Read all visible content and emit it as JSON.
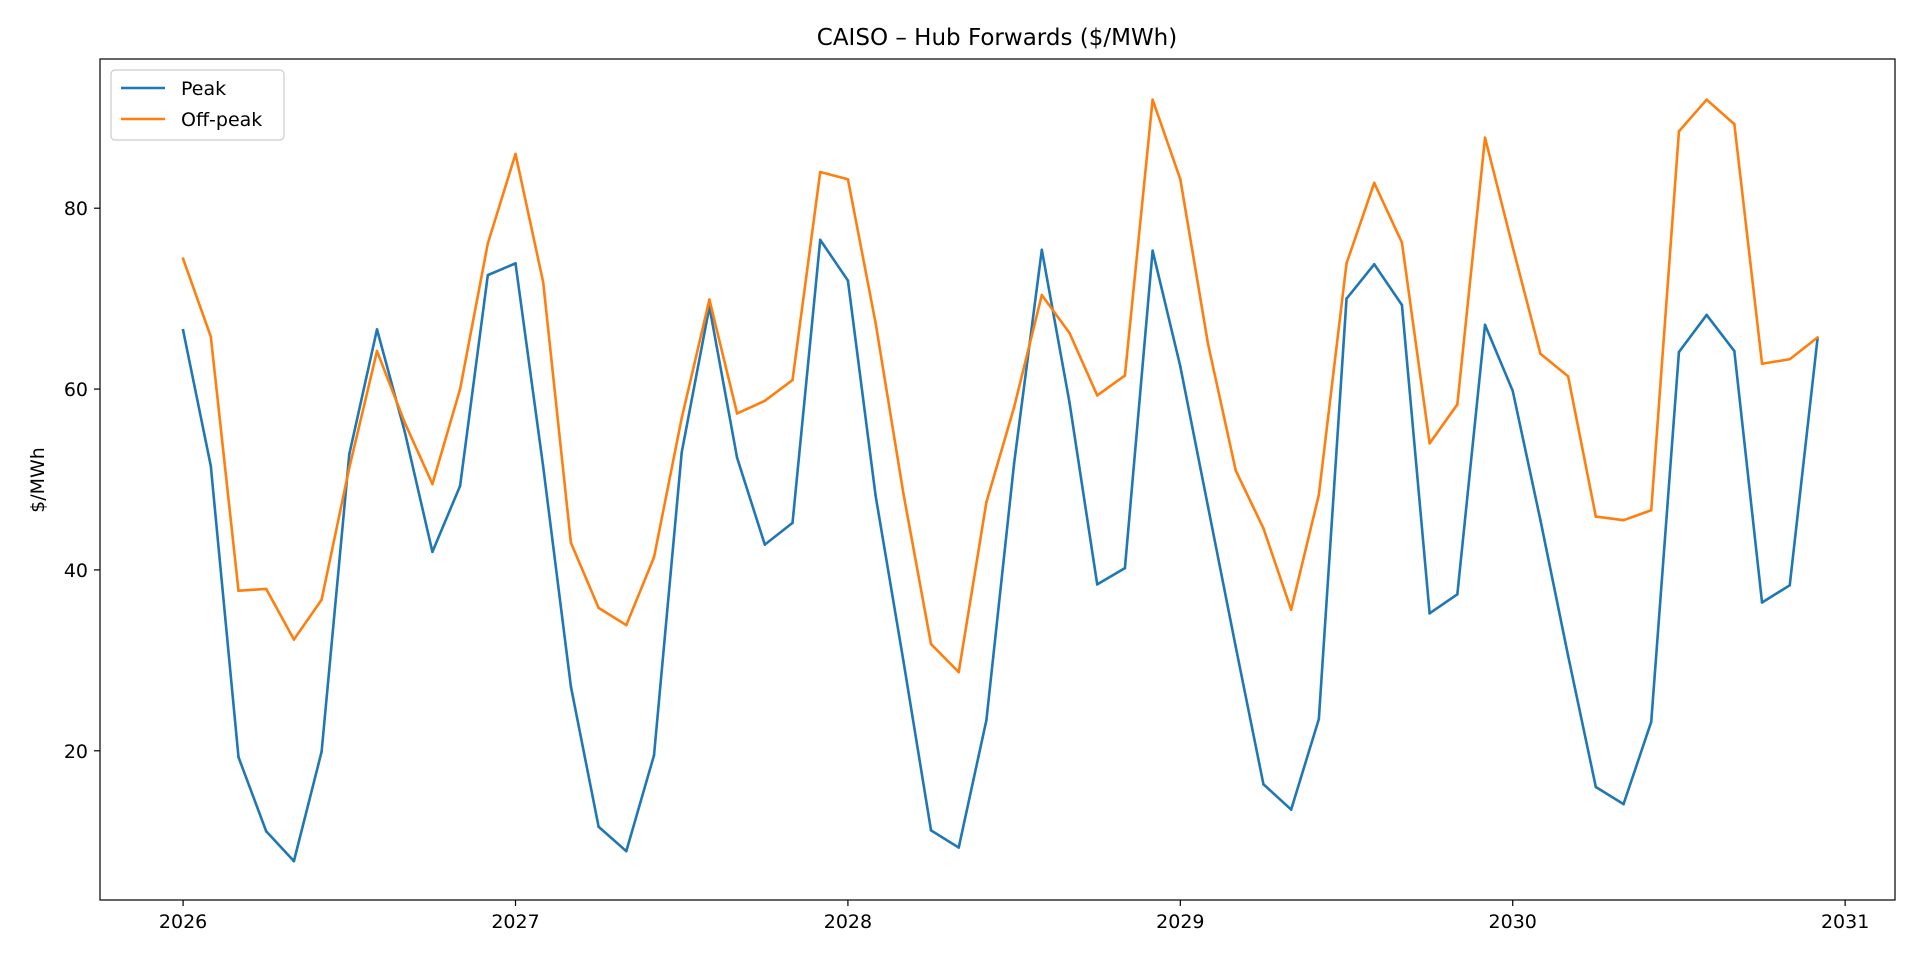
{
  "chart_data": {
    "type": "line",
    "title": "CAISO – Hub Forwards ($/MWh)",
    "xlabel": "",
    "ylabel": "$/MWh",
    "x_axis": {
      "ticks": [
        "2026",
        "2027",
        "2028",
        "2029",
        "2030",
        "2031"
      ],
      "range_years": [
        2025.75,
        2031.15
      ]
    },
    "y_axis": {
      "ticks": [
        20,
        40,
        60,
        80
      ],
      "range": [
        3.5,
        96.5
      ]
    },
    "grid": false,
    "legend": {
      "placement": "top-left"
    },
    "x": [
      "2026-01",
      "2026-02",
      "2026-03",
      "2026-04",
      "2026-05",
      "2026-06",
      "2026-07",
      "2026-08",
      "2026-09",
      "2026-10",
      "2026-11",
      "2026-12",
      "2027-01",
      "2027-02",
      "2027-03",
      "2027-04",
      "2027-05",
      "2027-06",
      "2027-07",
      "2027-08",
      "2027-09",
      "2027-10",
      "2027-11",
      "2027-12",
      "2028-01",
      "2028-02",
      "2028-03",
      "2028-04",
      "2028-05",
      "2028-06",
      "2028-07",
      "2028-08",
      "2028-09",
      "2028-10",
      "2028-11",
      "2028-12",
      "2029-01",
      "2029-02",
      "2029-03",
      "2029-04",
      "2029-05",
      "2029-06",
      "2029-07",
      "2029-08",
      "2029-09",
      "2029-10",
      "2029-11",
      "2029-12",
      "2030-01",
      "2030-02",
      "2030-03",
      "2030-04",
      "2030-05",
      "2030-06",
      "2030-07",
      "2030-08",
      "2030-09",
      "2030-10",
      "2030-11",
      "2030-12"
    ],
    "series": [
      {
        "name": "Peak",
        "color": "#1f77b4",
        "values": [
          66.5,
          51.5,
          19.3,
          11.1,
          7.8,
          19.9,
          52.8,
          66.6,
          55.3,
          42.0,
          49.3,
          72.6,
          73.9,
          51.4,
          27.1,
          11.6,
          8.9,
          19.5,
          53.0,
          69.1,
          52.4,
          42.8,
          45.2,
          76.5,
          72.0,
          48.2,
          30.0,
          11.2,
          9.3,
          23.4,
          51.8,
          75.4,
          58.5,
          38.4,
          40.2,
          75.3,
          62.5,
          47.0,
          31.5,
          16.3,
          13.5,
          23.5,
          70.0,
          73.8,
          69.3,
          35.2,
          37.3,
          67.1,
          59.8,
          45.5,
          30.5,
          16.0,
          14.1,
          23.2,
          64.1,
          68.2,
          64.2,
          36.4,
          38.3,
          65.5
        ]
      },
      {
        "name": "Off-peak",
        "color": "#ff7f0e",
        "values": [
          74.4,
          65.8,
          37.7,
          37.9,
          32.3,
          36.7,
          51.3,
          64.2,
          56.3,
          49.5,
          60.0,
          76.1,
          86.0,
          71.8,
          43.0,
          35.8,
          33.9,
          41.4,
          56.8,
          69.9,
          57.3,
          58.7,
          61.0,
          84.0,
          83.2,
          67.3,
          48.5,
          31.8,
          28.7,
          47.5,
          58.0,
          70.4,
          66.2,
          59.3,
          61.5,
          92.0,
          83.2,
          65.0,
          51.0,
          44.6,
          35.6,
          48.3,
          73.9,
          82.8,
          76.2,
          54.0,
          58.3,
          87.8,
          75.7,
          63.9,
          61.4,
          45.9,
          45.5,
          46.6,
          88.5,
          92.0,
          89.3,
          62.8,
          63.3,
          65.7
        ]
      }
    ]
  }
}
